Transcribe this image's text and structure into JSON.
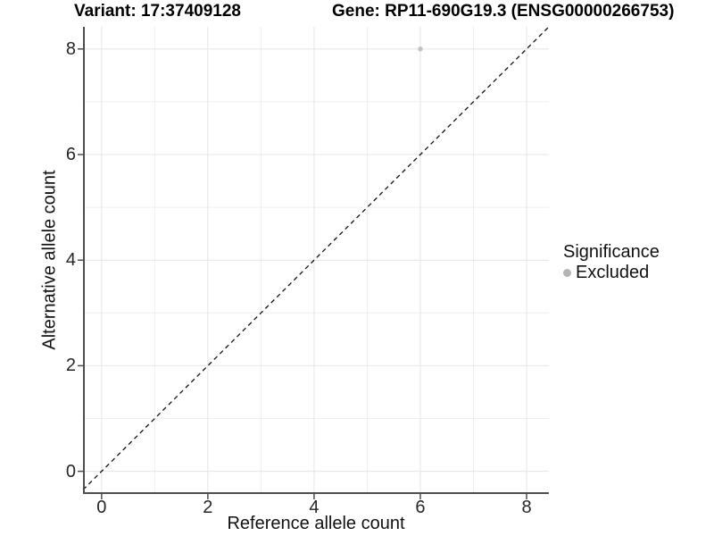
{
  "titles": {
    "variant": "Variant: 17:37409128",
    "gene": "Gene: RP11-690G19.3 (ENSG00000266753)"
  },
  "axes": {
    "x": {
      "label": "Reference allele count",
      "tick_labels": [
        "0",
        "2",
        "4",
        "6",
        "8"
      ]
    },
    "y": {
      "label": "Alternative allele count",
      "tick_labels": [
        "0",
        "2",
        "4",
        "6",
        "8"
      ]
    }
  },
  "legend": {
    "title": "Significance",
    "items": [
      {
        "label": "Excluded",
        "color": "#b5b5b5"
      }
    ]
  },
  "colors": {
    "background": "#ffffff",
    "grid_major": "#e4e4e4",
    "grid_minor": "#efefef",
    "axis_line": "#4d4d4d",
    "reference_line": "#111111",
    "point": "#c2c2c2"
  },
  "chart_data": {
    "type": "scatter",
    "title": "Variant: 17:37409128 | Gene: RP11-690G19.3 (ENSG00000266753)",
    "xlabel": "Reference allele count",
    "ylabel": "Alternative allele count",
    "xlim": [
      -0.35,
      8.42
    ],
    "ylim": [
      -0.43,
      8.42
    ],
    "xticks": [
      0,
      2,
      4,
      6,
      8
    ],
    "yticks": [
      0,
      2,
      4,
      6,
      8
    ],
    "xticks_minor": [
      1,
      3,
      5,
      7
    ],
    "yticks_minor": [
      1,
      3,
      5,
      7
    ],
    "grid": "major and minor gridlines, white panel background",
    "legend_position": "right",
    "series": [
      {
        "name": "Excluded",
        "color": "#c2c2c2",
        "points": [
          {
            "x": 6,
            "y": 8
          }
        ]
      }
    ],
    "reference_line": {
      "type": "identity y=x",
      "style": "dashed",
      "color": "#111111"
    }
  }
}
